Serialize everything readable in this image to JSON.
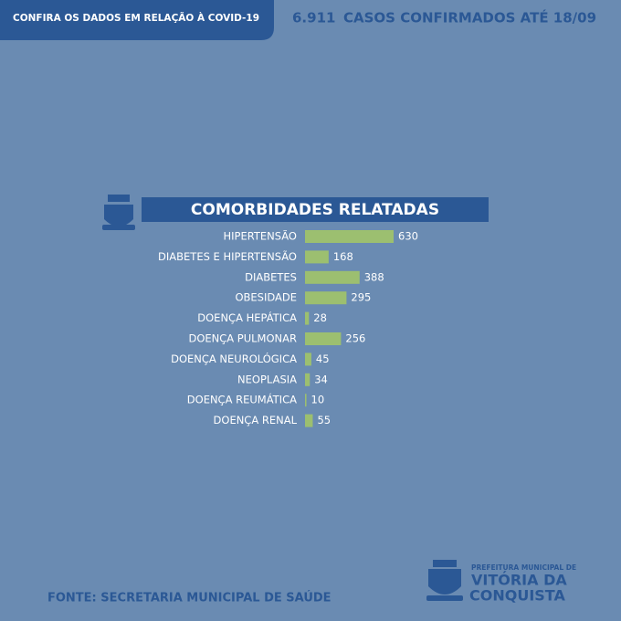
{
  "header": {
    "tab": "CONFIRA OS DADOS EM RELAÇÃO À COVID-19",
    "cases": "6.911",
    "cases_label": "CASOS CONFIRMADOS ATÉ 18/09"
  },
  "chart_data": {
    "type": "bar",
    "orientation": "horizontal",
    "title": "COMORBIDADES RELATADAS",
    "categories": [
      "HIPERTENSÃO",
      "DIABETES E HIPERTENSÃO",
      "DIABETES",
      "OBESIDADE",
      "DOENÇA HEPÁTICA",
      "DOENÇA PULMONAR",
      "DOENÇA NEUROLÓGICA",
      "NEOPLASIA",
      "DOENÇA REUMÁTICA",
      "DOENÇA RENAL"
    ],
    "values": [
      630,
      168,
      388,
      295,
      28,
      256,
      45,
      34,
      10,
      55
    ],
    "color": "#9cbf70"
  },
  "footer": {
    "source": "FONTE: SECRETARIA MUNICIPAL DE SAÚDE",
    "logo_top": "PREFEITURA MUNICIPAL DE",
    "logo_line1": "VITÓRIA DA",
    "logo_line2": "CONQUISTA"
  }
}
